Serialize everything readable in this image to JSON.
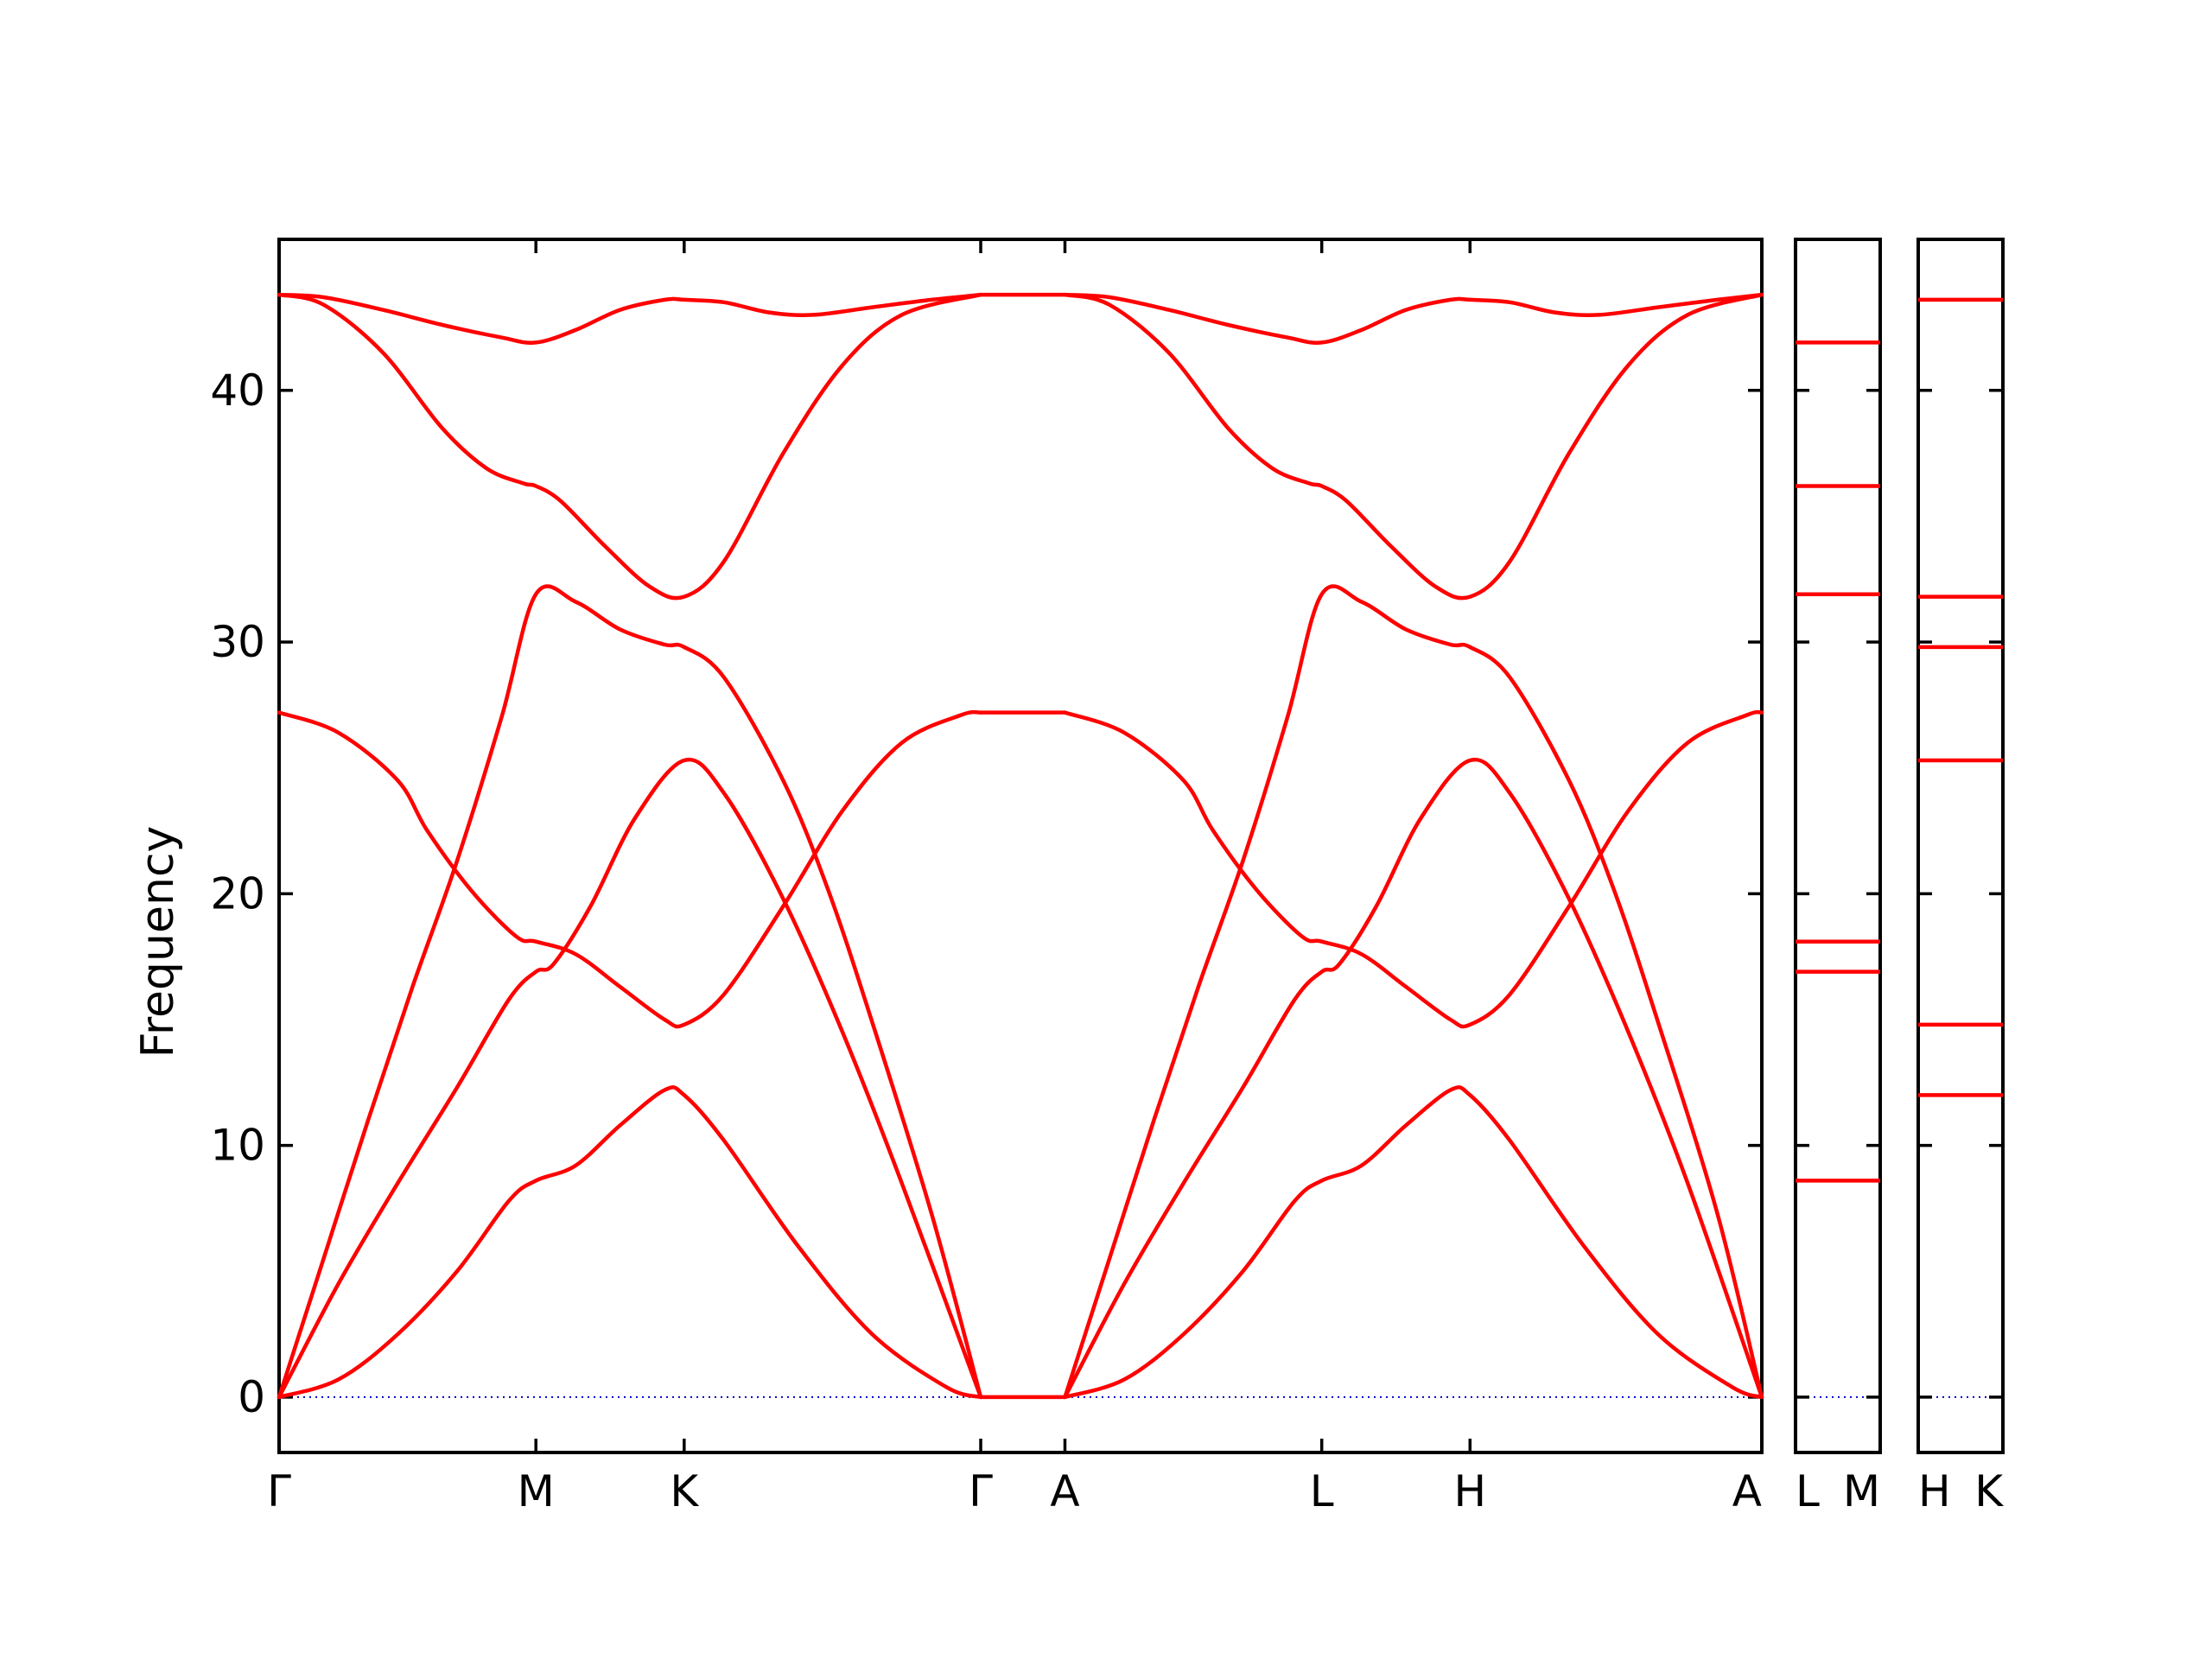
{
  "colors": {
    "band": "#ff0000",
    "zero_line": "#0000cc",
    "frame": "#000000"
  },
  "chart_data": {
    "type": "line",
    "ylabel": "Frequency",
    "ylim": [
      -2.2,
      46
    ],
    "yticks": [
      0,
      10,
      20,
      30,
      40
    ],
    "ytick_labels": [
      "0",
      "10",
      "20",
      "30",
      "40"
    ],
    "main_panel": {
      "xlim": [
        0,
        10
      ],
      "x_ticks": [
        {
          "x": 0,
          "label": "Γ"
        },
        {
          "x": 1.732,
          "label": "M"
        },
        {
          "x": 2.732,
          "label": "K"
        },
        {
          "x": 4.732,
          "label": "Γ"
        },
        {
          "x": 5.3,
          "label": "A"
        },
        {
          "x": 7.032,
          "label": "L"
        },
        {
          "x": 8.032,
          "label": "H"
        },
        {
          "x": 10,
          "label": "A"
        }
      ],
      "series": [
        {
          "x": [
            0,
            0.4,
            0.8,
            1.2,
            1.55,
            1.732,
            2.0,
            2.3,
            2.6,
            2.732,
            3.0,
            3.5,
            4.0,
            4.5,
            4.732
          ],
          "y": [
            0,
            0.7,
            2.5,
            5.0,
            7.8,
            8.6,
            9.2,
            10.8,
            12.2,
            12.0,
            10.2,
            6.0,
            2.5,
            0.4,
            0
          ]
        },
        {
          "x": [
            0,
            0.4,
            0.8,
            1.2,
            1.55,
            1.732,
            1.85,
            2.1,
            2.4,
            2.732,
            3.0,
            3.4,
            3.8,
            4.2,
            4.732
          ],
          "y": [
            0,
            4.5,
            8.5,
            12.3,
            15.8,
            16.9,
            17.2,
            19.5,
            23.0,
            25.3,
            24.0,
            19.8,
            14.5,
            8.5,
            0
          ]
        },
        {
          "x": [
            0,
            0.3,
            0.6,
            0.9,
            1.2,
            1.5,
            1.732,
            2.0,
            2.3,
            2.6,
            2.732,
            3.0,
            3.4,
            3.7,
            4.0,
            4.4,
            4.732
          ],
          "y": [
            0,
            5.5,
            11.0,
            16.3,
            21.3,
            27.0,
            31.9,
            31.6,
            30.5,
            29.9,
            29.8,
            28.6,
            24.5,
            20.2,
            14.9,
            7.3,
            0
          ]
        },
        {
          "x": [
            0,
            0.4,
            0.8,
            1.0,
            1.3,
            1.6,
            1.732,
            2.0,
            2.3,
            2.6,
            2.732,
            3.0,
            3.4,
            3.8,
            4.2,
            4.6,
            4.732
          ],
          "y": [
            27.2,
            26.4,
            24.5,
            22.5,
            20.1,
            18.3,
            18.1,
            17.6,
            16.3,
            15.0,
            14.8,
            16.0,
            19.5,
            23.3,
            26.0,
            27.1,
            27.2
          ]
        },
        {
          "x": [
            0,
            0.3,
            0.7,
            1.1,
            1.4,
            1.65,
            1.732,
            1.9,
            2.2,
            2.5,
            2.732,
            3.0,
            3.4,
            3.8,
            4.2,
            4.732
          ],
          "y": [
            43.8,
            43.4,
            41.5,
            38.5,
            36.9,
            36.3,
            36.2,
            35.6,
            33.8,
            32.2,
            31.8,
            33.2,
            37.5,
            41.0,
            43.0,
            43.8
          ]
        },
        {
          "x": [
            0,
            0.3,
            0.7,
            1.1,
            1.5,
            1.732,
            2.0,
            2.3,
            2.6,
            2.732,
            3.0,
            3.3,
            3.6,
            4.0,
            4.4,
            4.732
          ],
          "y": [
            43.8,
            43.7,
            43.2,
            42.6,
            42.1,
            41.9,
            42.4,
            43.2,
            43.6,
            43.6,
            43.5,
            43.1,
            43.0,
            43.3,
            43.6,
            43.8
          ]
        },
        {
          "x": [
            4.732,
            5.3
          ],
          "y": [
            0,
            0
          ]
        },
        {
          "x": [
            4.732,
            5.3
          ],
          "y": [
            27.2,
            27.2
          ]
        },
        {
          "x": [
            4.732,
            5.3
          ],
          "y": [
            43.8,
            43.8
          ]
        },
        {
          "x": [
            5.3,
            5.7,
            6.1,
            6.5,
            6.85,
            7.032,
            7.3,
            7.6,
            7.9,
            8.032,
            8.3,
            8.8,
            9.3,
            9.8,
            10.0
          ],
          "y": [
            0,
            0.7,
            2.5,
            5.0,
            7.8,
            8.6,
            9.2,
            10.8,
            12.2,
            12.0,
            10.2,
            6.0,
            2.5,
            0.4,
            0
          ]
        },
        {
          "x": [
            5.3,
            5.7,
            6.1,
            6.5,
            6.85,
            7.032,
            7.15,
            7.4,
            7.7,
            8.032,
            8.3,
            8.7,
            9.1,
            9.5,
            10.0
          ],
          "y": [
            0,
            4.5,
            8.5,
            12.3,
            15.8,
            16.9,
            17.2,
            19.5,
            23.0,
            25.3,
            24.0,
            19.8,
            14.5,
            8.5,
            0
          ]
        },
        {
          "x": [
            5.3,
            5.6,
            5.9,
            6.2,
            6.5,
            6.8,
            7.032,
            7.3,
            7.6,
            7.9,
            8.032,
            8.3,
            8.7,
            9.0,
            9.3,
            9.7,
            10.0
          ],
          "y": [
            0,
            5.5,
            11.0,
            16.3,
            21.3,
            27.0,
            31.9,
            31.6,
            30.5,
            29.9,
            29.8,
            28.6,
            24.5,
            20.2,
            14.9,
            7.3,
            0
          ]
        },
        {
          "x": [
            5.3,
            5.7,
            6.1,
            6.3,
            6.6,
            6.9,
            7.032,
            7.3,
            7.6,
            7.9,
            8.032,
            8.3,
            8.7,
            9.1,
            9.5,
            9.9,
            10.0
          ],
          "y": [
            27.2,
            26.4,
            24.5,
            22.5,
            20.1,
            18.3,
            18.1,
            17.6,
            16.3,
            15.0,
            14.8,
            16.0,
            19.5,
            23.3,
            26.0,
            27.1,
            27.2
          ]
        },
        {
          "x": [
            5.3,
            5.6,
            6.0,
            6.4,
            6.7,
            6.95,
            7.032,
            7.2,
            7.5,
            7.8,
            8.032,
            8.3,
            8.7,
            9.1,
            9.5,
            10.0
          ],
          "y": [
            43.8,
            43.4,
            41.5,
            38.5,
            36.9,
            36.3,
            36.2,
            35.6,
            33.8,
            32.2,
            31.8,
            33.2,
            37.5,
            41.0,
            43.0,
            43.8
          ]
        },
        {
          "x": [
            5.3,
            5.6,
            6.0,
            6.4,
            6.8,
            7.032,
            7.3,
            7.6,
            7.9,
            8.032,
            8.3,
            8.6,
            8.9,
            9.3,
            9.7,
            10.0
          ],
          "y": [
            43.8,
            43.7,
            43.2,
            42.6,
            42.1,
            41.9,
            42.4,
            43.2,
            43.6,
            43.6,
            43.5,
            43.1,
            43.0,
            43.3,
            43.6,
            43.8
          ]
        }
      ]
    },
    "side_panels": [
      {
        "tick_labels": [
          "L",
          "M"
        ],
        "levels": [
          8.6,
          16.9,
          18.1,
          31.9,
          36.2,
          41.9
        ]
      },
      {
        "tick_labels": [
          "H",
          "K"
        ],
        "levels": [
          12.0,
          14.8,
          25.3,
          29.8,
          31.8,
          43.6
        ]
      }
    ]
  }
}
